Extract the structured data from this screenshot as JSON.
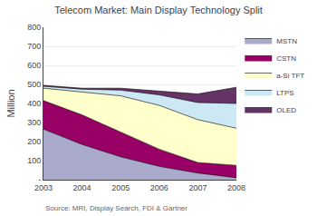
{
  "chart_data": {
    "type": "area",
    "title": "Telecom Market: Main Display Technology Split",
    "ylabel": "Million",
    "x": [
      2003,
      2004,
      2005,
      2006,
      2007,
      2008
    ],
    "series": [
      {
        "name": "MSTN",
        "color": "#aaaacc",
        "values": [
          265,
          185,
          120,
          70,
          35,
          10
        ]
      },
      {
        "name": "CSTN",
        "color": "#990066",
        "values": [
          150,
          155,
          130,
          90,
          55,
          65
        ]
      },
      {
        "name": "a-Si TFT",
        "color": "#ffffcc",
        "values": [
          65,
          120,
          190,
          230,
          225,
          195
        ]
      },
      {
        "name": "LTPS",
        "color": "#cce8f4",
        "values": [
          10,
          15,
          30,
          55,
          90,
          130
        ]
      },
      {
        "name": "OLED",
        "color": "#663366",
        "values": [
          5,
          5,
          10,
          20,
          45,
          85
        ]
      }
    ],
    "xlim": [
      2003,
      2008
    ],
    "xticks": [
      2003,
      2004,
      2005,
      2006,
      2007,
      2008
    ],
    "ylim": [
      0,
      800
    ],
    "yticks": [
      {
        "value": 0,
        "label": "-"
      },
      100,
      200,
      300,
      400,
      500,
      600,
      700,
      800
    ],
    "stacked": true,
    "grid": true,
    "legend": "right",
    "annotations": [
      "Source: MRI, Display Search, FDI & Gartner"
    ]
  }
}
